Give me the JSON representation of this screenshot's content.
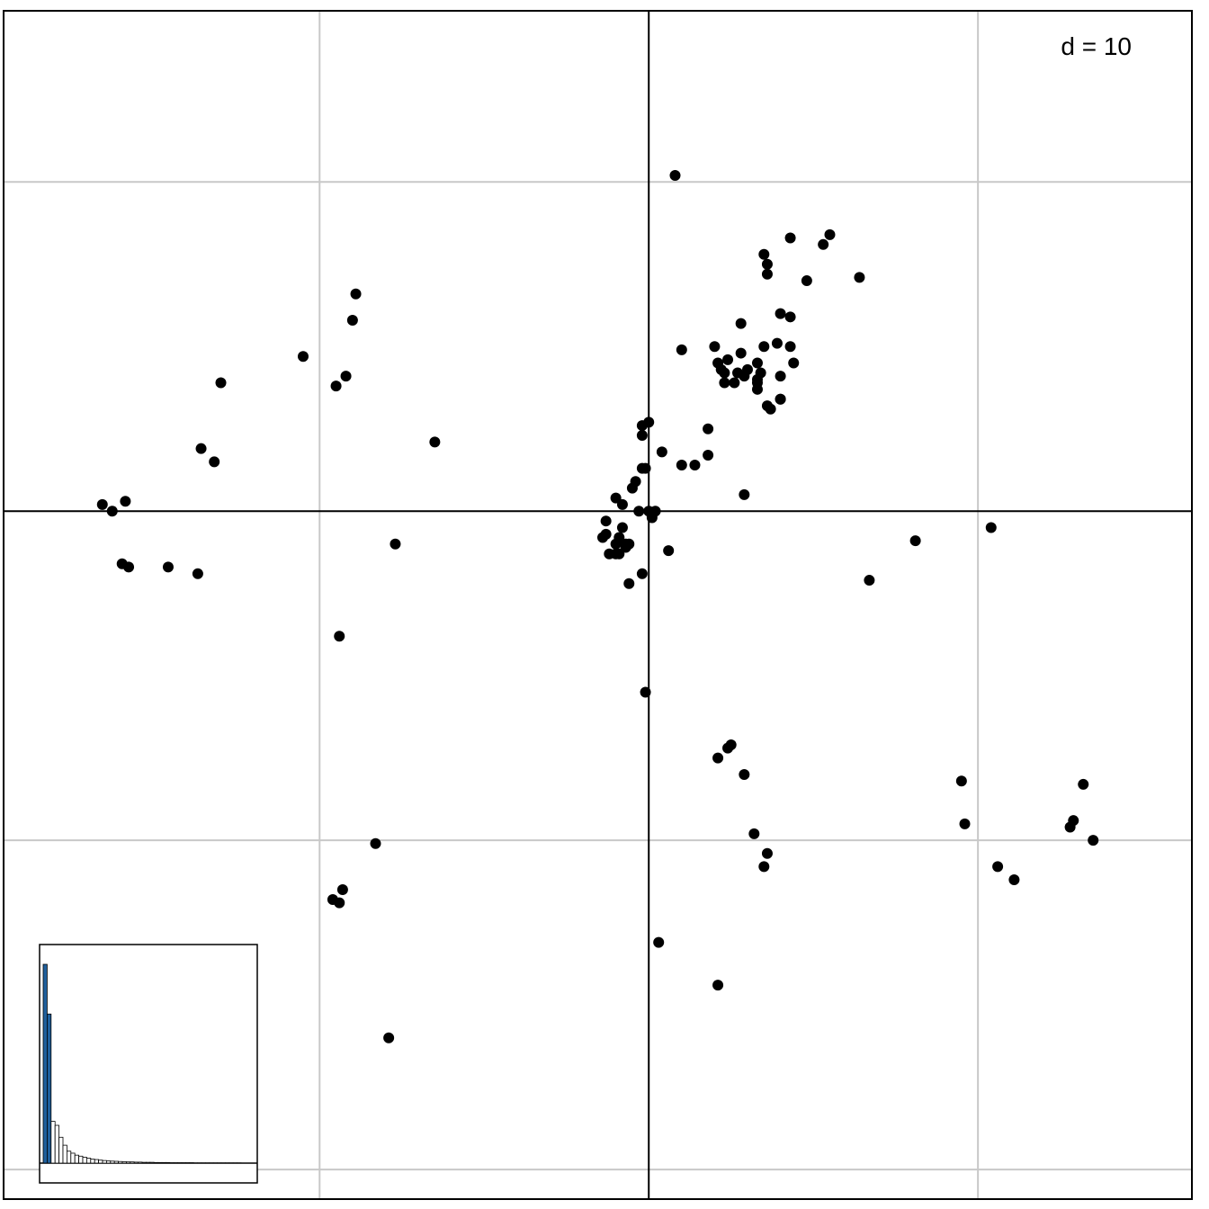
{
  "chart_data": {
    "type": "scatter",
    "title": "",
    "xlabel": "",
    "ylabel": "",
    "grid": true,
    "grid_spacing": 10,
    "xlim": [
      -19.6,
      16.5
    ],
    "ylim": [
      -20.9,
      15.2
    ],
    "scale_label": "d = 10",
    "point_color": "#000000",
    "grid_color": "#c8c8c8",
    "axis_color": "#000000",
    "points": [
      [
        0.8,
        10.2
      ],
      [
        5.5,
        8.4
      ],
      [
        4.3,
        8.3
      ],
      [
        3.5,
        7.8
      ],
      [
        3.6,
        7.5
      ],
      [
        3.6,
        7.2
      ],
      [
        4.8,
        7.0
      ],
      [
        6.4,
        7.1
      ],
      [
        5.3,
        8.1
      ],
      [
        4.0,
        6.0
      ],
      [
        4.3,
        5.9
      ],
      [
        2.8,
        5.7
      ],
      [
        3.9,
        5.1
      ],
      [
        3.5,
        5.0
      ],
      [
        4.3,
        5.0
      ],
      [
        2.0,
        5.0
      ],
      [
        2.8,
        4.8
      ],
      [
        1.0,
        4.9
      ],
      [
        2.1,
        4.5
      ],
      [
        4.4,
        4.5
      ],
      [
        3.3,
        4.5
      ],
      [
        2.4,
        4.6
      ],
      [
        2.2,
        4.3
      ],
      [
        3.4,
        4.2
      ],
      [
        2.7,
        4.2
      ],
      [
        3.0,
        4.3
      ],
      [
        4.0,
        4.1
      ],
      [
        2.3,
        4.2
      ],
      [
        2.9,
        4.1
      ],
      [
        3.3,
        4.0
      ],
      [
        2.6,
        3.9
      ],
      [
        2.3,
        3.9
      ],
      [
        3.3,
        3.7
      ],
      [
        3.3,
        3.9
      ],
      [
        4.0,
        3.4
      ],
      [
        3.7,
        3.1
      ],
      [
        4.0,
        3.4
      ],
      [
        3.6,
        3.2
      ],
      [
        -8.9,
        6.6
      ],
      [
        -9.0,
        5.8
      ],
      [
        -10.5,
        4.7
      ],
      [
        -9.2,
        4.1
      ],
      [
        -9.5,
        3.8
      ],
      [
        -13.0,
        3.9
      ],
      [
        -13.6,
        1.9
      ],
      [
        -13.2,
        1.5
      ],
      [
        -6.5,
        2.1
      ],
      [
        -16.6,
        0.2
      ],
      [
        -15.9,
        0.3
      ],
      [
        -16.3,
        0.0
      ],
      [
        0.0,
        2.7
      ],
      [
        -0.2,
        2.6
      ],
      [
        -0.2,
        2.3
      ],
      [
        0.4,
        1.8
      ],
      [
        1.0,
        1.4
      ],
      [
        1.8,
        1.7
      ],
      [
        1.8,
        2.5
      ],
      [
        1.4,
        1.4
      ],
      [
        -0.1,
        1.3
      ],
      [
        -0.2,
        1.3
      ],
      [
        -0.4,
        0.9
      ],
      [
        -0.5,
        0.7
      ],
      [
        -1.0,
        0.4
      ],
      [
        -0.8,
        0.2
      ],
      [
        2.9,
        0.5
      ],
      [
        -0.3,
        0.0
      ],
      [
        0.0,
        0.0
      ],
      [
        0.2,
        0.0
      ],
      [
        0.1,
        -0.2
      ],
      [
        -1.3,
        -0.3
      ],
      [
        -0.8,
        -0.5
      ],
      [
        -1.3,
        -0.7
      ],
      [
        -0.9,
        -0.8
      ],
      [
        -1.4,
        -0.8
      ],
      [
        -0.6,
        -1.0
      ],
      [
        -0.7,
        -1.0
      ],
      [
        -1.0,
        -1.0
      ],
      [
        -1.2,
        -1.3
      ],
      [
        -1.0,
        -1.3
      ],
      [
        -0.7,
        -1.1
      ],
      [
        -0.9,
        -1.3
      ],
      [
        -0.2,
        -1.9
      ],
      [
        -0.6,
        -2.2
      ],
      [
        0.6,
        -1.2
      ],
      [
        -7.7,
        -1.0
      ],
      [
        -16.0,
        -1.6
      ],
      [
        -15.8,
        -1.7
      ],
      [
        -14.6,
        -1.7
      ],
      [
        -13.7,
        -1.9
      ],
      [
        8.1,
        -0.9
      ],
      [
        10.4,
        -0.5
      ],
      [
        6.7,
        -2.1
      ],
      [
        -9.4,
        -3.8
      ],
      [
        -0.1,
        -5.5
      ],
      [
        2.1,
        -7.5
      ],
      [
        2.4,
        -7.2
      ],
      [
        2.5,
        -7.1
      ],
      [
        2.9,
        -8.0
      ],
      [
        3.2,
        -9.8
      ],
      [
        3.6,
        -10.4
      ],
      [
        3.5,
        -10.8
      ],
      [
        9.5,
        -8.2
      ],
      [
        9.6,
        -9.5
      ],
      [
        13.2,
        -8.3
      ],
      [
        12.9,
        -9.4
      ],
      [
        12.8,
        -9.6
      ],
      [
        13.5,
        -10.0
      ],
      [
        10.6,
        -10.8
      ],
      [
        11.1,
        -11.2
      ],
      [
        -8.3,
        -10.1
      ],
      [
        -9.3,
        -11.5
      ],
      [
        -9.6,
        -11.8
      ],
      [
        -9.4,
        -11.9
      ],
      [
        0.3,
        -13.1
      ],
      [
        2.1,
        -14.4
      ],
      [
        -7.9,
        -16.0
      ]
    ]
  },
  "inset": {
    "bar_color": "#1f5f9c",
    "eigenvalues": [
      1.0,
      0.75,
      0.21,
      0.19,
      0.13,
      0.09,
      0.06,
      0.05,
      0.04,
      0.035,
      0.03,
      0.025,
      0.02,
      0.018,
      0.015,
      0.013,
      0.011,
      0.01,
      0.009,
      0.008,
      0.007,
      0.006,
      0.006,
      0.005,
      0.005,
      0.004,
      0.004,
      0.004,
      0.003,
      0.003,
      0.003,
      0.003,
      0.002,
      0.002,
      0.002,
      0.002,
      0.002,
      0.002,
      0.001,
      0.001,
      0.001,
      0.001,
      0.001,
      0.001,
      0.001,
      0.001,
      0.001,
      0.001,
      0.001,
      0.001
    ],
    "highlighted": 2
  }
}
